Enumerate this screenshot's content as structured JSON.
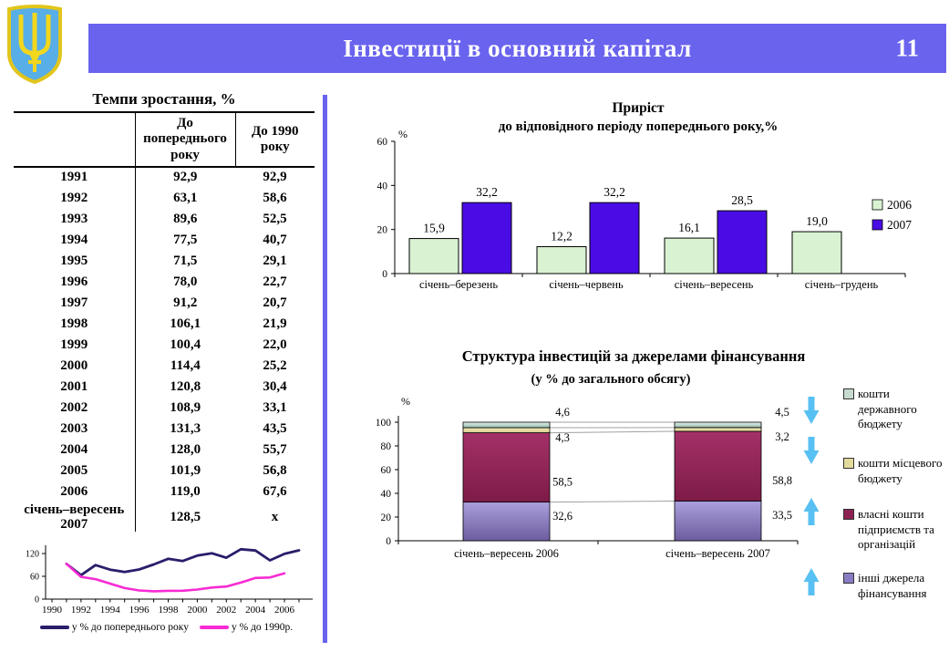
{
  "header": {
    "title": "Інвестиції в основний капітал",
    "page_number": "11",
    "bar_color": "#6A63EE"
  },
  "logo": {
    "label": "coat-of-arms-ukraine",
    "shield_color": "#58AEE6",
    "trident_color": "#F2D71C"
  },
  "table": {
    "title": "Темпи зростання, %",
    "columns": [
      "",
      "До попереднього року",
      "До 1990 року"
    ],
    "rows": [
      [
        "1991",
        "92,9",
        "92,9"
      ],
      [
        "1992",
        "63,1",
        "58,6"
      ],
      [
        "1993",
        "89,6",
        "52,5"
      ],
      [
        "1994",
        "77,5",
        "40,7"
      ],
      [
        "1995",
        "71,5",
        "29,1"
      ],
      [
        "1996",
        "78,0",
        "22,7"
      ],
      [
        "1997",
        "91,2",
        "20,7"
      ],
      [
        "1998",
        "106,1",
        "21,9"
      ],
      [
        "1999",
        "100,4",
        "22,0"
      ],
      [
        "2000",
        "114,4",
        "25,2"
      ],
      [
        "2001",
        "120,8",
        "30,4"
      ],
      [
        "2002",
        "108,9",
        "33,1"
      ],
      [
        "2003",
        "131,3",
        "43,5"
      ],
      [
        "2004",
        "128,0",
        "55,7"
      ],
      [
        "2005",
        "101,9",
        "56,8"
      ],
      [
        "2006",
        "119,0",
        "67,6"
      ],
      [
        "січень–вересень 2007",
        "128,5",
        "х"
      ]
    ]
  },
  "chart_data": [
    {
      "type": "line",
      "x_start_year": 1991,
      "series": [
        {
          "name": "у % до попереднього року",
          "color": "#2B1D6B",
          "values": [
            92.9,
            63.1,
            89.6,
            77.5,
            71.5,
            78.0,
            91.2,
            106.1,
            100.4,
            114.4,
            120.8,
            108.9,
            131.3,
            128.0,
            101.9,
            119.0,
            128.5
          ]
        },
        {
          "name": "у % до 1990р.",
          "color": "#F72BD3",
          "values": [
            92.9,
            58.6,
            52.5,
            40.7,
            29.1,
            22.7,
            20.7,
            21.9,
            22.0,
            25.2,
            30.4,
            33.1,
            43.5,
            55.7,
            56.8,
            67.6
          ]
        }
      ],
      "xticks": [
        1990,
        1992,
        1994,
        1996,
        1998,
        2000,
        2002,
        2004,
        2006
      ],
      "yticks": [
        0,
        60,
        120
      ],
      "ylim": [
        0,
        150
      ],
      "grid": false,
      "legend_position": "bottom"
    },
    {
      "type": "bar",
      "title": "Приріст",
      "title_line2": "до відповідного періоду попереднього року,%",
      "ylabel": "%",
      "categories": [
        "січень–березень",
        "січень–червень",
        "січень–вересень",
        "січень–грудень"
      ],
      "series": [
        {
          "name": "2006",
          "color": "#D9F3D2",
          "values": [
            15.9,
            12.2,
            16.1,
            19.0
          ]
        },
        {
          "name": "2007",
          "color": "#4A0CE4",
          "values": [
            32.2,
            32.2,
            28.5,
            null
          ]
        }
      ],
      "yticks": [
        0,
        20,
        40,
        60
      ],
      "ylim": [
        0,
        60
      ],
      "grid": false,
      "legend_position": "right"
    },
    {
      "type": "stacked-bar",
      "title": "Структура інвестицій за джерелами фінансування",
      "subtitle": "(у % до загального обсягу)",
      "ylabel": "%",
      "categories": [
        "січень–вересень 2006",
        "січень–вересень 2007"
      ],
      "series": [
        {
          "name": "інші джерела фінансування",
          "color": "#8A7CC4",
          "gradient": [
            "#ABA0DE",
            "#6D5C9E"
          ],
          "values": [
            32.6,
            33.5
          ],
          "trend": "up"
        },
        {
          "name": "власні кошти підприємств та організацій",
          "color": "#8E2153",
          "gradient": [
            "#A33168",
            "#7E1B47"
          ],
          "values": [
            58.5,
            58.8
          ],
          "trend": "up"
        },
        {
          "name": "кошти місцевого бюджету",
          "color": "#E3DB9C",
          "gradient": [
            "#EFE9BE",
            "#D9CF8C"
          ],
          "values": [
            4.3,
            3.2
          ],
          "trend": "down"
        },
        {
          "name": "кошти державного бюджету",
          "color": "#C6DACE",
          "gradient": [
            "#E4F0EA",
            "#96BCAC"
          ],
          "values": [
            4.6,
            4.5
          ],
          "trend": "down"
        }
      ],
      "yticks": [
        0,
        20,
        40,
        60,
        80,
        100
      ],
      "ylim": [
        0,
        100
      ],
      "legend_position": "right",
      "arrow_color": "#58C0F2"
    }
  ]
}
